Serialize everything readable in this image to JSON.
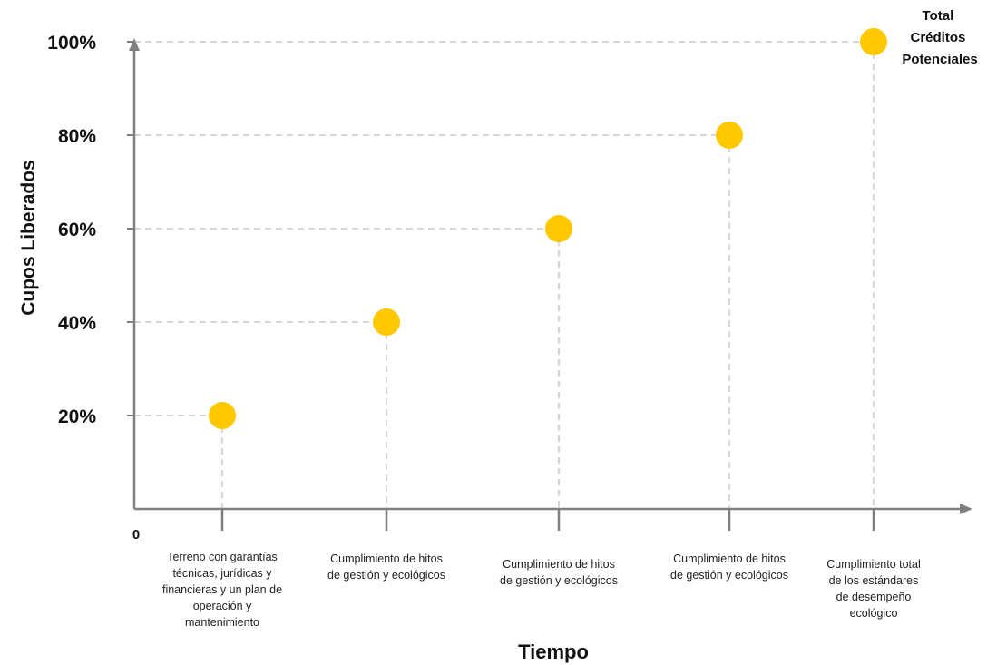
{
  "chart_data": {
    "type": "scatter",
    "xlabel": "Tiempo",
    "ylabel": "Cupos Liberados",
    "origin_label": "0",
    "categories": [
      "Terreno con garantías técnicas, jurídicas y financieras y un plan de operación y mantenimiento",
      "Cumplimiento de  hitos de gestión y ecológicos",
      "Cumplimiento de  hitos de gestión y ecológicos",
      "Cumplimiento de  hitos de gestión y ecológicos",
      "Cumplimiento total de los estándares de desempeño ecológico"
    ],
    "category_lines": [
      [
        "Terreno con garantías",
        "técnicas, jurídicas y",
        "financieras y un plan de",
        "operación y",
        "mantenimiento"
      ],
      [
        "Cumplimiento de  hitos",
        "de gestión y ecológicos"
      ],
      [
        "Cumplimiento de  hitos",
        "de gestión y ecológicos"
      ],
      [
        "Cumplimiento de  hitos",
        "de gestión y ecológicos"
      ],
      [
        "Cumplimiento total",
        "de los estándares",
        "de desempeño",
        "ecológico"
      ]
    ],
    "values": [
      20,
      40,
      60,
      80,
      100
    ],
    "y_ticks": [
      "20%",
      "40%",
      "60%",
      "80%",
      "100%"
    ],
    "y_tick_values": [
      20,
      40,
      60,
      80,
      100
    ],
    "ylim": [
      0,
      100
    ],
    "grid": "dashed guide lines to each point",
    "annotation_lines": [
      "Total",
      "Créditos",
      "Potenciales"
    ],
    "colors": {
      "marker": "#FFC800",
      "axis": "#7f7f7f",
      "guide": "#c8c8c8"
    }
  }
}
